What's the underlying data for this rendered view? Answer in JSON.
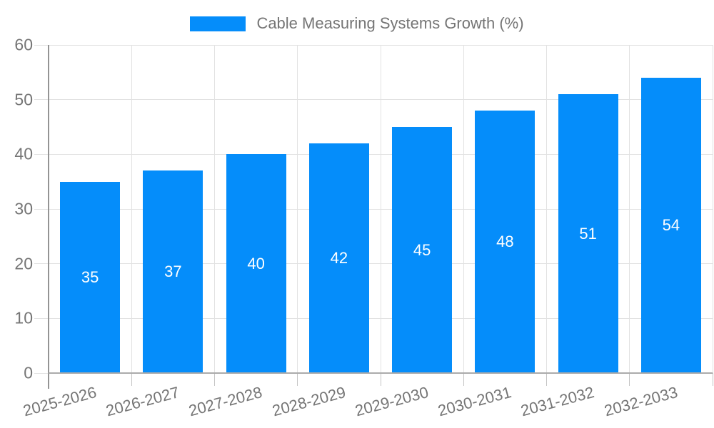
{
  "legend": {
    "label": "Cable Measuring Systems Growth (%)"
  },
  "chart_data": {
    "type": "bar",
    "title": "Cable Measuring Systems Growth (%)",
    "series_name": "Cable Measuring Systems Growth (%)",
    "categories": [
      "2025-2026",
      "2026-2027",
      "2027-2028",
      "2028-2029",
      "2029-2030",
      "2030-2031",
      "2031-2032",
      "2032-2033"
    ],
    "values": [
      35,
      37,
      40,
      42,
      45,
      48,
      51,
      54
    ],
    "value_labels": [
      "35",
      "37",
      "40",
      "42",
      "45",
      "48",
      "51",
      "54"
    ],
    "ylim": [
      0,
      60
    ],
    "yticks": [
      0,
      10,
      20,
      30,
      40,
      50,
      60
    ],
    "xlabel": "",
    "ylabel": "",
    "grid": true,
    "legend_position": "top-center",
    "bar_color": "#058DFA",
    "value_label_color": "#FFFFFF",
    "axis_text_color": "#757575",
    "gridline_color": "#E2E2E2",
    "axis_line_color": "#9E9E9E",
    "background_color": "#FFFFFF"
  }
}
